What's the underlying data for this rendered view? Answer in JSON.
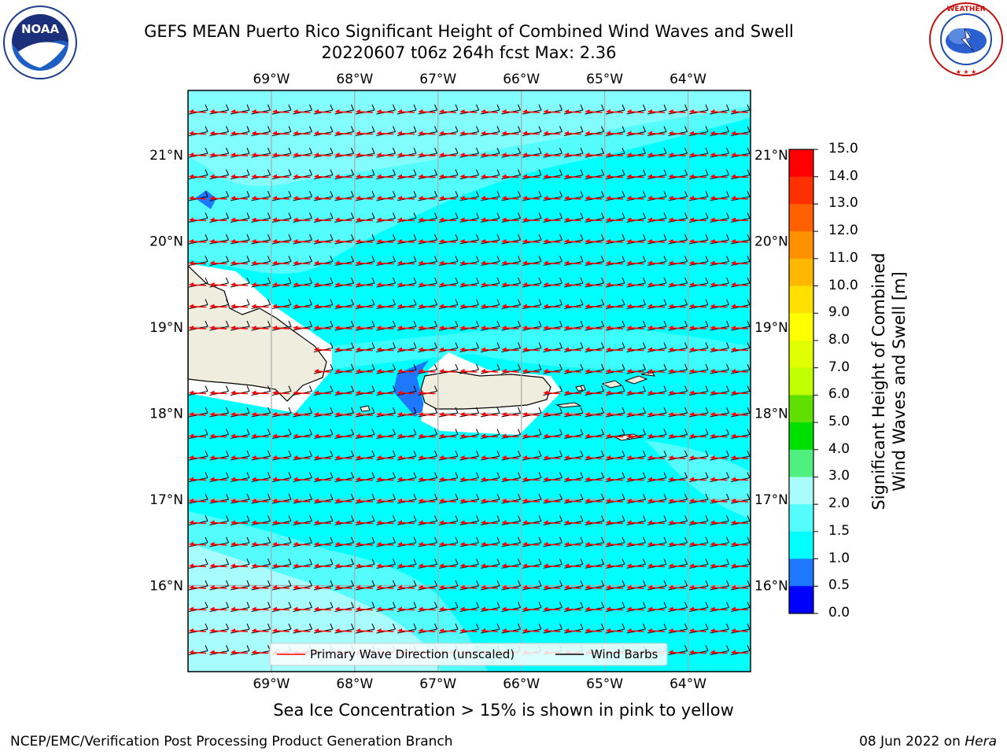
{
  "header": {
    "title_line1": "GEFS MEAN Puerto Rico Significant Height of Combined Wind Waves and Swell",
    "title_line2": "20220607 t06z 264h fcst   Max: 2.36"
  },
  "logos": {
    "left": {
      "name": "NOAA",
      "ring_text": "NATIONAL OCEANIC AND ATMOSPHERIC ADMINISTRATION · U.S. DEPARTMENT OF COMMERCE"
    },
    "right": {
      "name": "NATIONAL WEATHER SERVICE"
    }
  },
  "map": {
    "lon_labels": [
      "69°W",
      "68°W",
      "67°W",
      "66°W",
      "65°W",
      "64°W"
    ],
    "lon_values": [
      -69,
      -68,
      -67,
      -66,
      -65,
      -64
    ],
    "lat_labels": [
      "21°N",
      "20°N",
      "19°N",
      "18°N",
      "17°N",
      "16°N"
    ],
    "lat_values": [
      21,
      20,
      19,
      18,
      17,
      16
    ],
    "extent": {
      "lon_min": -70,
      "lon_max": -63.25,
      "lat_min": 15,
      "lat_max": 21.75
    },
    "legend": {
      "primary_wave": "Primary Wave Direction (unscaled)",
      "wind_barbs": "Wind Barbs"
    },
    "field": {
      "max_wave_height": 2.36,
      "dominant_class": "1.5–2.0",
      "wave_direction": "toward west (from east)",
      "wind_direction": "from east-northeast"
    },
    "colors": {
      "ocean_1_5": "#00ffff",
      "ocean_2_0": "#54fcfc",
      "ocean_2_5": "#a8fcfc",
      "shallow_0_5": "#1e78ff",
      "land": "#efedde",
      "arrow": "#ff0000",
      "barb": "#000000"
    }
  },
  "colorbar": {
    "label_line1": "Significant Height of Combined",
    "label_line2": "Wind Waves and Swell [m]",
    "ticks": [
      "15.0",
      "14.0",
      "13.0",
      "12.0",
      "11.0",
      "10.0",
      "9.0",
      "8.0",
      "7.0",
      "6.0",
      "5.0",
      "4.0",
      "3.0",
      "2.0",
      "1.5",
      "1.0",
      "0.5",
      "0.0"
    ],
    "bands": [
      {
        "range": "14.0-15.0",
        "color": "#ff0000"
      },
      {
        "range": "13.0-14.0",
        "color": "#ff3000"
      },
      {
        "range": "12.0-13.0",
        "color": "#ff6000"
      },
      {
        "range": "11.0-12.0",
        "color": "#ff9000"
      },
      {
        "range": "10.0-11.0",
        "color": "#ffb800"
      },
      {
        "range": "9.0-10.0",
        "color": "#ffe000"
      },
      {
        "range": "8.0-9.0",
        "color": "#ffff00"
      },
      {
        "range": "7.0-8.0",
        "color": "#e0ff00"
      },
      {
        "range": "6.0-7.0",
        "color": "#c0ff00"
      },
      {
        "range": "5.0-6.0",
        "color": "#60e000"
      },
      {
        "range": "4.0-5.0",
        "color": "#00e000"
      },
      {
        "range": "3.0-4.0",
        "color": "#50f080"
      },
      {
        "range": "2.0-3.0",
        "color": "#a8fcfc"
      },
      {
        "range": "1.5-2.0",
        "color": "#54fcfc"
      },
      {
        "range": "1.0-1.5",
        "color": "#00ffff"
      },
      {
        "range": "0.5-1.0",
        "color": "#1e78ff"
      },
      {
        "range": "0.0-0.5",
        "color": "#0000ff"
      }
    ]
  },
  "note": "Sea Ice Concentration > 15% is shown in pink to yellow",
  "footer": {
    "left": "NCEP/EMC/Verification Post Processing Product Generation Branch",
    "right_prefix": "08 Jun 2022 on ",
    "right_host": "Hera"
  }
}
